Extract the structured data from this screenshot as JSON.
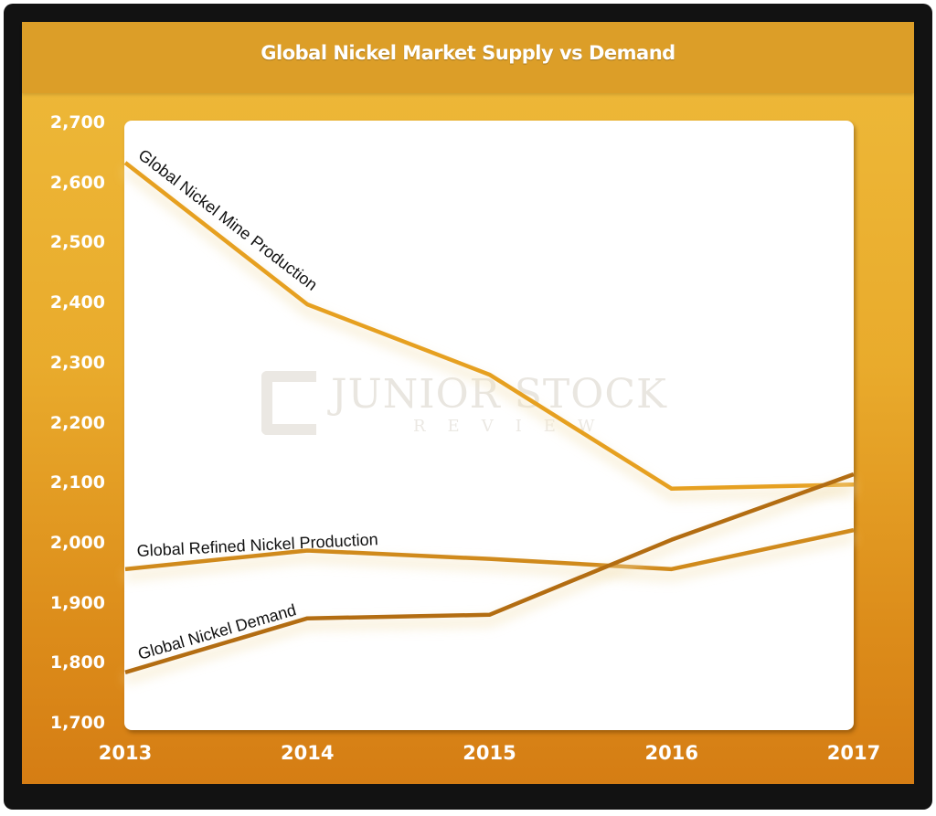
{
  "chart_data": {
    "type": "line",
    "title": "Global Nickel Market Supply vs Demand",
    "xlabel": "",
    "ylabel": "",
    "x": [
      "2013",
      "2014",
      "2015",
      "2016",
      "2017"
    ],
    "ylim": [
      1700,
      2700
    ],
    "yticks": [
      "2,700",
      "2,600",
      "2,500",
      "2,400",
      "2,300",
      "2,200",
      "2,100",
      "2,000",
      "1,900",
      "1,800",
      "1,700"
    ],
    "grid": false,
    "legend": "inline labels",
    "series": [
      {
        "name": "Global Nickel Mine Production",
        "values": [
          2636,
          2400,
          2283,
          2093,
          2100
        ],
        "color": "#e6a020"
      },
      {
        "name": "Global Refined Nickel Production",
        "values": [
          1959,
          1990,
          1976,
          1959,
          2024
        ],
        "color": "#d08a1c"
      },
      {
        "name": "Global Nickel Demand",
        "values": [
          1787,
          1877,
          1883,
          2008,
          2117
        ],
        "color": "#b36d12"
      }
    ],
    "watermark": {
      "main": "JUNIOR STOCK",
      "sub": "REVIEW"
    }
  }
}
